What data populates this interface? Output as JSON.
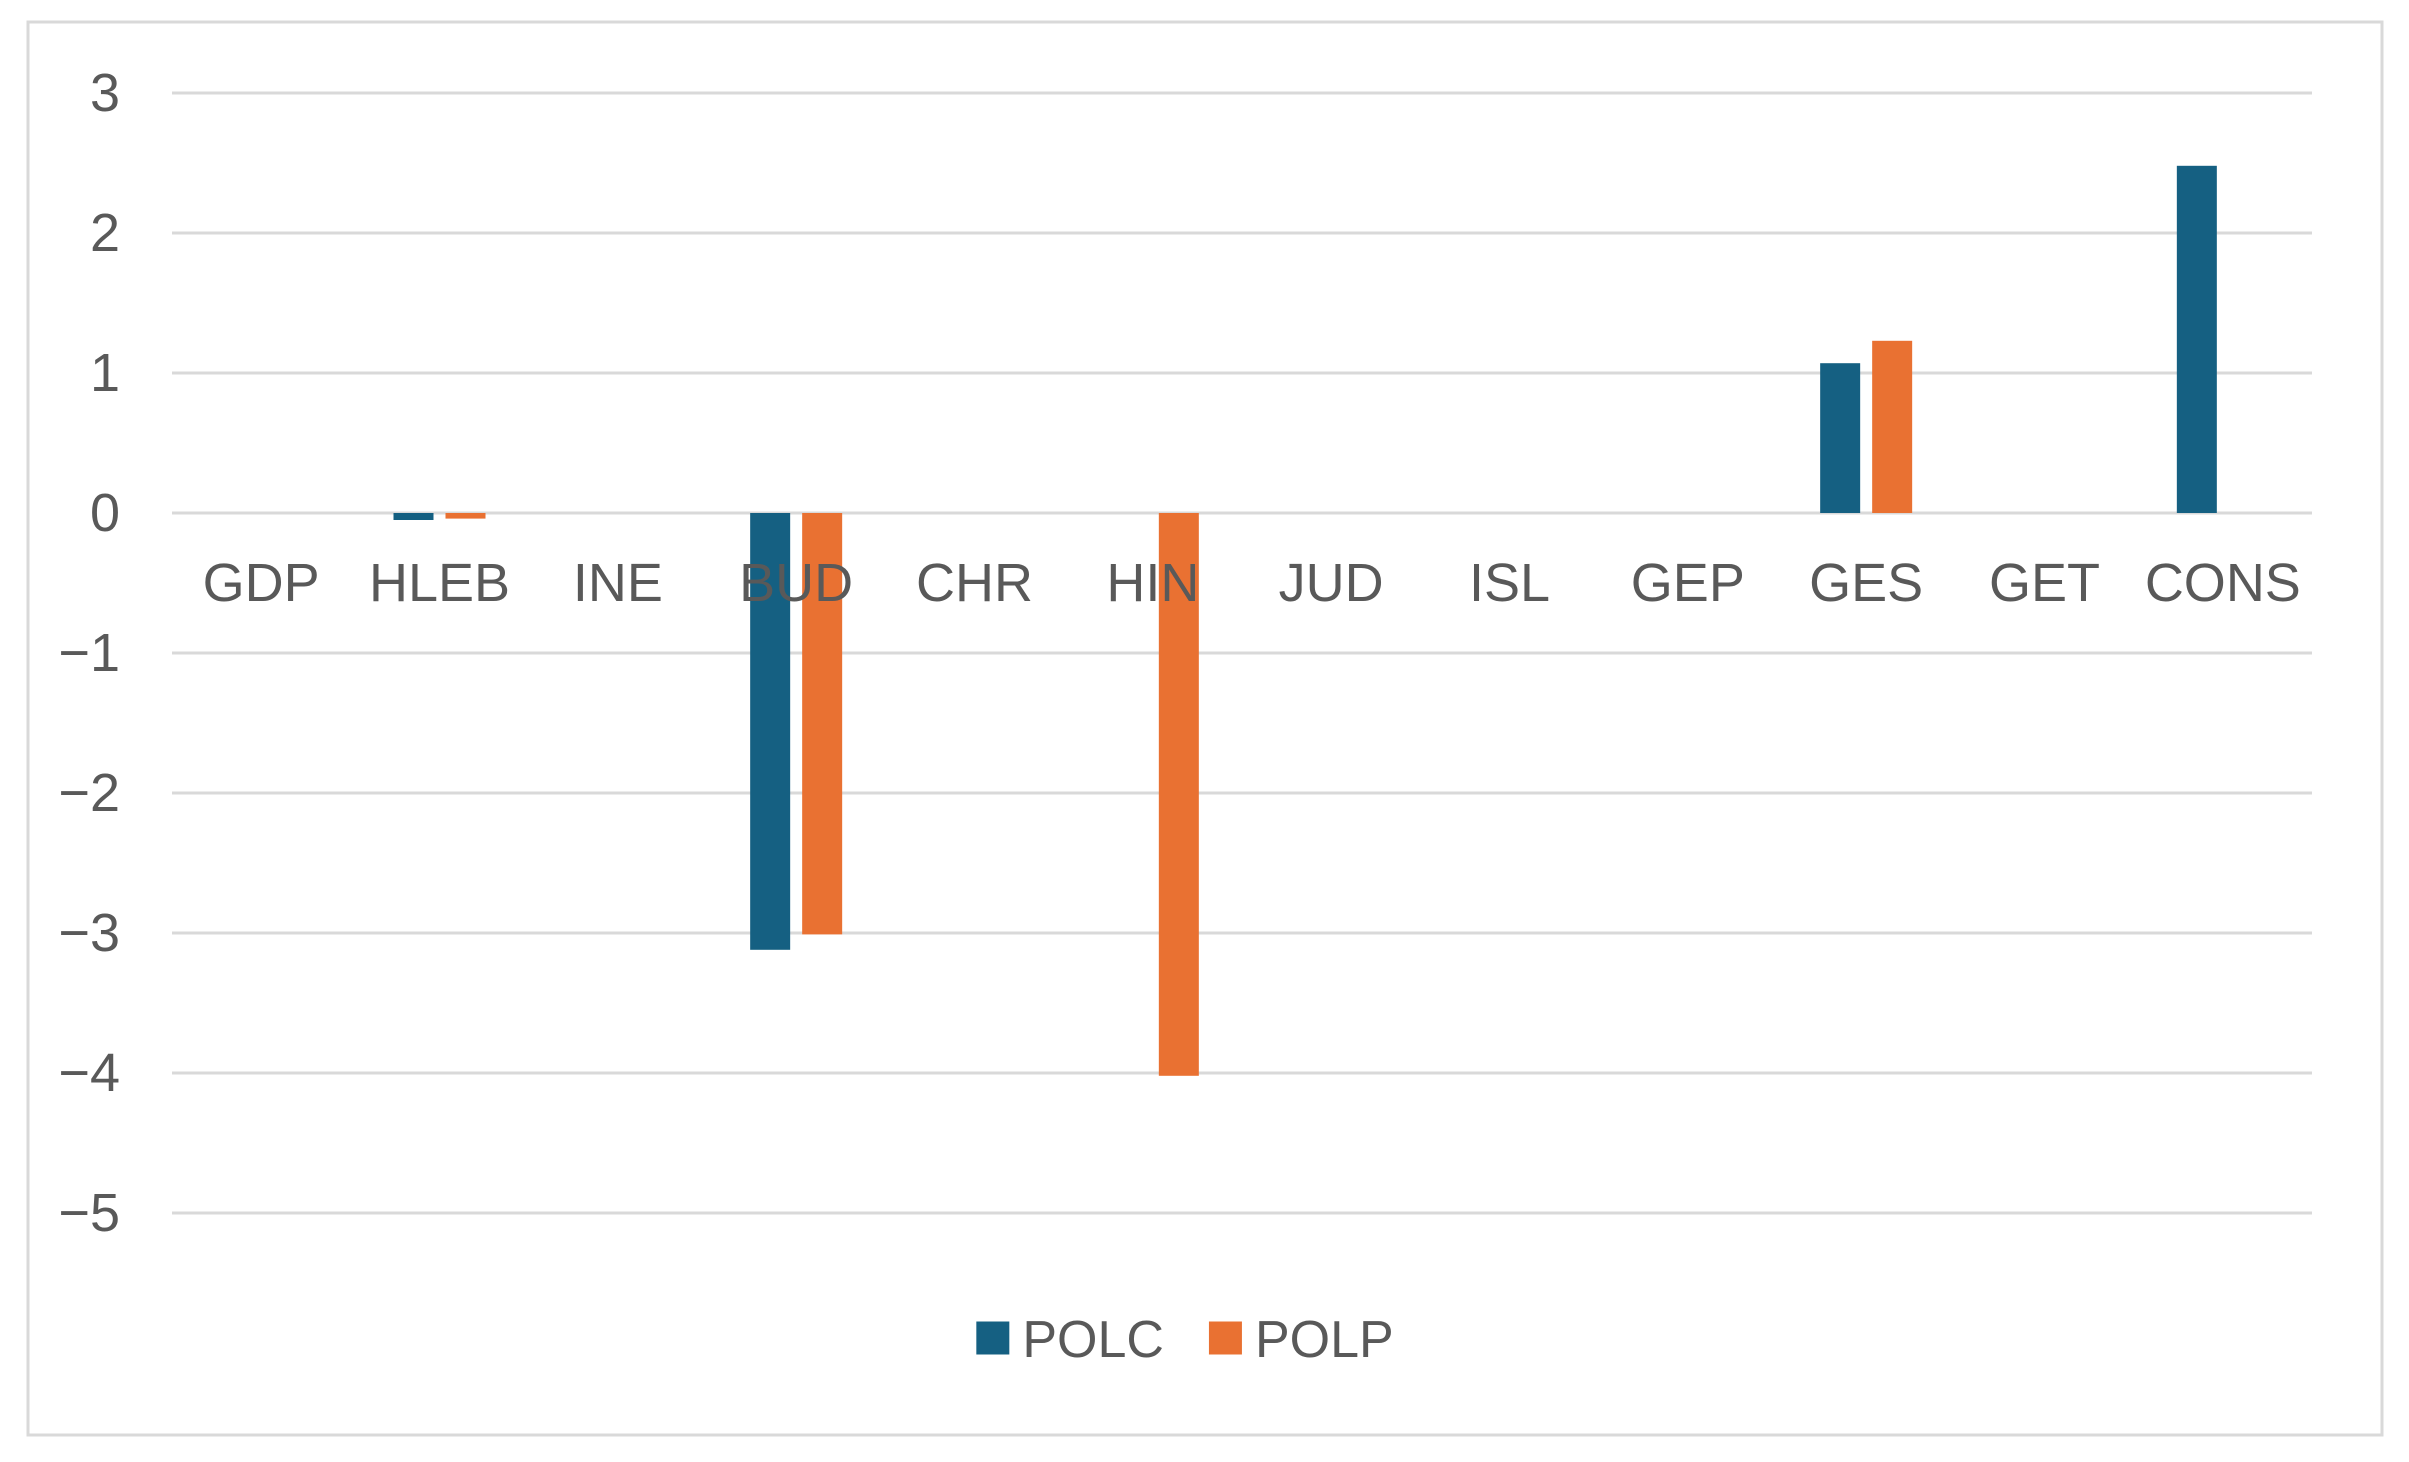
{
  "chart_data": {
    "type": "bar",
    "title": "",
    "xlabel": "",
    "ylabel": "",
    "categories": [
      "GDP",
      "HLEB",
      "INE",
      "BUD",
      "CHR",
      "HIN",
      "JUD",
      "ISL",
      "GEP",
      "GES",
      "GET",
      "CONS"
    ],
    "series": [
      {
        "name": "POLC",
        "color": "#156082",
        "values": [
          0,
          -0.05,
          0,
          -3.12,
          0,
          0,
          0,
          0,
          0,
          1.07,
          0,
          2.48
        ]
      },
      {
        "name": "POLP",
        "color": "#E97132",
        "values": [
          0,
          -0.04,
          0,
          -3.01,
          0,
          -4.02,
          0,
          0,
          0,
          1.23,
          0,
          0
        ]
      }
    ],
    "ylim": [
      -5,
      3
    ],
    "yticks": [
      3,
      2,
      1,
      0,
      -1,
      -2,
      -3,
      -4,
      -5
    ],
    "ytick_labels": [
      "3",
      "2",
      "1",
      "0",
      "−1",
      "−2",
      "−3",
      "−4",
      "−5"
    ],
    "grid": true,
    "gridline_color": "#D9D9D9",
    "zero_line_color": "#D9D9D9",
    "frame_color": "#D9D9D9",
    "text_color": "#595959",
    "background_color": "#FFFFFF",
    "legend_position": "bottom",
    "legend_labels": [
      "POLC",
      "POLP"
    ]
  }
}
